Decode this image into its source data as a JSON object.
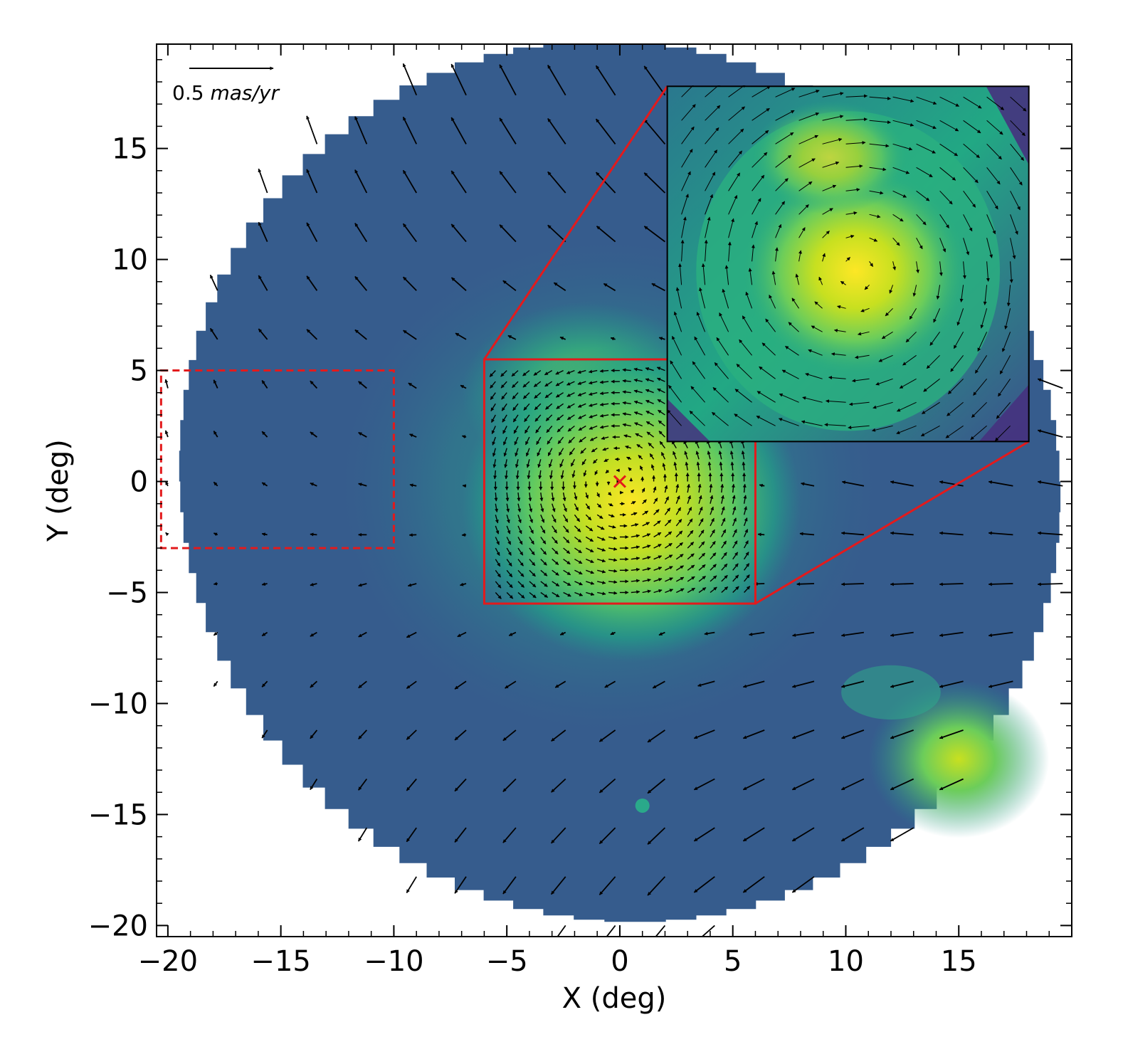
{
  "chart_data": {
    "type": "vector-field",
    "xlabel": "X (deg)",
    "ylabel": "Y (deg)",
    "xlim": [
      -20.5,
      20
    ],
    "ylim": [
      -20.5,
      19.7
    ],
    "xticks": [
      -20,
      -15,
      -10,
      -5,
      0,
      5,
      10,
      15
    ],
    "xtick_labels": [
      "−20",
      "−15",
      "−10",
      "−5",
      "0",
      "5",
      "10",
      "15"
    ],
    "yticks": [
      -20,
      -15,
      -10,
      -5,
      0,
      5,
      10,
      15
    ],
    "ytick_labels": [
      "−20",
      "−15",
      "−10",
      "−5",
      "0",
      "5",
      "10",
      "15"
    ],
    "scale_bar": {
      "value": "0.5",
      "unit": "mas/yr"
    },
    "background": {
      "colormap": "viridis",
      "field_radius_deg": 19.5,
      "blobs": [
        {
          "x": 0.5,
          "y": -1,
          "level": "high"
        },
        {
          "x": -1.5,
          "y": 4,
          "level": "medium"
        },
        {
          "x": 15,
          "y": -12.5,
          "level": "high"
        }
      ]
    },
    "center_marker": {
      "x": 0,
      "y": 0,
      "symbol": "×",
      "color": "#e31a1c"
    },
    "dashed_box": {
      "x": [
        -20.3,
        -10
      ],
      "y": [
        -3,
        5
      ],
      "color": "#e31a1c"
    },
    "zoom_box": {
      "x": [
        -6,
        6
      ],
      "y": [
        -5.5,
        5.5
      ],
      "color": "#e31a1c"
    },
    "inset": {
      "x": [
        2.1,
        18.1
      ],
      "y": [
        1.8,
        17.8
      ],
      "colormap": "viridis",
      "shows_region": "zoom_box"
    },
    "vector_field": {
      "description": "outer arrows: systematic motion, zoomed region: rotating pattern",
      "outer_grid_step_deg": 2.2,
      "inner_grid_step_deg": 0.5
    }
  },
  "colors": {
    "viridis_low": "#46327e",
    "viridis_mid": "#365c8d",
    "viridis_midhigh": "#1fa187",
    "viridis_high": "#fde725",
    "box": "#e31a1c",
    "arrow": "#000000"
  }
}
